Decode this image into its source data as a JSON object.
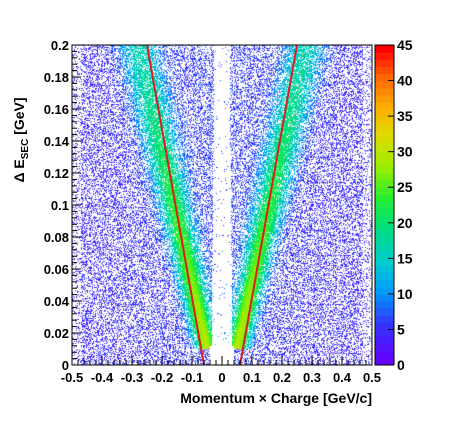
{
  "chart_data": {
    "type": "heatmap",
    "title": "",
    "xlabel": "Momentum × Charge [GeV/c]",
    "ylabel_prefix": "Δ E",
    "ylabel_sub": "SEC",
    "ylabel_suffix": " [GeV]",
    "xlim": [
      -0.5,
      0.5
    ],
    "ylim": [
      0,
      0.2
    ],
    "x_ticks": [
      "-0.5",
      "-0.4",
      "-0.3",
      "-0.2",
      "-0.1",
      "0",
      "0.1",
      "0.2",
      "0.3",
      "0.4",
      "0.5"
    ],
    "x_tick_values": [
      -0.5,
      -0.4,
      -0.3,
      -0.2,
      -0.1,
      0,
      0.1,
      0.2,
      0.3,
      0.4,
      0.5
    ],
    "y_ticks": [
      "0",
      "0.02",
      "0.04",
      "0.06",
      "0.08",
      "0.1",
      "0.12",
      "0.14",
      "0.16",
      "0.18",
      "0.2"
    ],
    "y_tick_values": [
      0,
      0.02,
      0.04,
      0.06,
      0.08,
      0.1,
      0.12,
      0.14,
      0.16,
      0.18,
      0.2
    ],
    "colorbar": {
      "range": [
        0,
        45
      ],
      "ticks": [
        "0",
        "5",
        "10",
        "15",
        "20",
        "25",
        "30",
        "35",
        "40",
        "45"
      ],
      "tick_values": [
        0,
        5,
        10,
        15,
        20,
        25,
        30,
        35,
        40,
        45
      ]
    },
    "cut_lines": [
      {
        "color": "#d42020",
        "x": [
          -0.25,
          -0.06
        ],
        "y": [
          0.2,
          0
        ]
      },
      {
        "color": "#d42020",
        "x": [
          0.25,
          0.06
        ],
        "y": [
          0.2,
          0
        ]
      }
    ],
    "bands": [
      {
        "side": "negative",
        "x_at_low": -0.05,
        "x_at_high": -0.28,
        "y_low": 0.01,
        "y_high": 0.2
      },
      {
        "side": "positive",
        "x_at_low": 0.05,
        "x_at_high": 0.28,
        "y_low": 0.01,
        "y_high": 0.2
      }
    ],
    "grid": false
  }
}
